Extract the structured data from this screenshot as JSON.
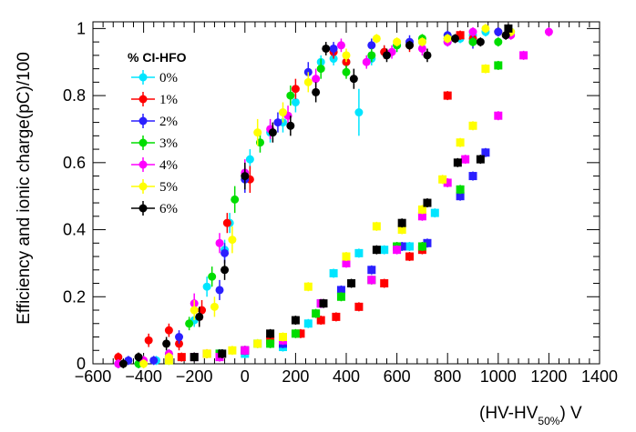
{
  "chart_data": {
    "type": "scatter",
    "xlabel": "(HV-HV",
    "xlabel_sub": "50%",
    "xlabel_unit": ") V",
    "ylabel": "Efficiency and ionic charge(pC)/100",
    "xlim": [
      -600,
      1400
    ],
    "ylim": [
      0,
      1.02
    ],
    "x_ticks": [
      -600,
      -400,
      -200,
      0,
      200,
      400,
      600,
      800,
      1000,
      1200,
      1400
    ],
    "y_ticks": [
      0,
      0.2,
      0.4,
      0.6,
      0.8,
      1
    ],
    "x_tick_labels": [
      "−600",
      "−400",
      "−200",
      "0",
      "200",
      "400",
      "600",
      "800",
      "1000",
      "1200",
      "1400"
    ],
    "y_tick_labels": [
      "0",
      "0.2",
      "0.4",
      "0.6",
      "0.8",
      "1"
    ],
    "legend_title": "% CI-HFO",
    "legend_position": "top-left",
    "series": [
      {
        "name": "0%",
        "color": "#00e5ff",
        "efficiency": [
          [
            -500,
            0.0
          ],
          [
            -420,
            0.0
          ],
          [
            -350,
            0.01
          ],
          [
            -300,
            0.03
          ],
          [
            -200,
            0.13
          ],
          [
            -150,
            0.23
          ],
          [
            -80,
            0.34
          ],
          [
            -60,
            0.42
          ],
          [
            0,
            0.55
          ],
          [
            20,
            0.61
          ],
          [
            100,
            0.69
          ],
          [
            150,
            0.72
          ],
          [
            200,
            0.78
          ],
          [
            300,
            0.9
          ],
          [
            350,
            0.91
          ],
          [
            400,
            0.9
          ],
          [
            450,
            0.75
          ],
          [
            500,
            0.91
          ],
          [
            550,
            0.93
          ],
          [
            600,
            0.95
          ],
          [
            700,
            0.96
          ],
          [
            800,
            0.96
          ],
          [
            850,
            0.97
          ],
          [
            900,
            0.98
          ],
          [
            950,
            0.99
          ],
          [
            1000,
            0.99
          ],
          [
            1050,
            0.99
          ]
        ],
        "efficiency_err": [
          0.004,
          0.004,
          0.006,
          0.01,
          0.02,
          0.03,
          0.03,
          0.03,
          0.03,
          0.03,
          0.03,
          0.03,
          0.03,
          0.02,
          0.02,
          0.02,
          0.07,
          0.02,
          0.02,
          0.02,
          0.01,
          0.01,
          0.01,
          0.01,
          0.005,
          0.005,
          0.005
        ],
        "charge": [
          [
            -300,
            0.01
          ],
          [
            -100,
            0.03
          ],
          [
            0,
            0.03
          ],
          [
            50,
            0.06
          ],
          [
            150,
            0.05
          ],
          [
            250,
            0.12
          ],
          [
            350,
            0.27
          ],
          [
            450,
            0.33
          ],
          [
            550,
            0.34
          ],
          [
            650,
            0.35
          ],
          [
            750,
            0.45
          ]
        ]
      },
      {
        "name": "1%",
        "color": "#ff0000",
        "efficiency": [
          [
            -500,
            0.02
          ],
          [
            -380,
            0.07
          ],
          [
            -300,
            0.1
          ],
          [
            -260,
            0.06
          ],
          [
            -170,
            0.16
          ],
          [
            -70,
            0.42
          ],
          [
            20,
            0.55
          ],
          [
            200,
            0.82
          ],
          [
            350,
            0.93
          ],
          [
            400,
            0.9
          ],
          [
            550,
            0.93
          ],
          [
            650,
            0.95
          ],
          [
            850,
            0.98
          ],
          [
            900,
            0.97
          ],
          [
            1000,
            0.99
          ]
        ],
        "efficiency_err": [
          0.01,
          0.02,
          0.02,
          0.02,
          0.03,
          0.03,
          0.04,
          0.03,
          0.02,
          0.02,
          0.02,
          0.02,
          0.01,
          0.01,
          0.01
        ],
        "charge": [
          [
            -250,
            0.02
          ],
          [
            -150,
            0.03
          ],
          [
            0,
            0.04
          ],
          [
            100,
            0.07
          ],
          [
            220,
            0.09
          ],
          [
            300,
            0.13
          ],
          [
            360,
            0.14
          ],
          [
            450,
            0.17
          ],
          [
            550,
            0.24
          ],
          [
            650,
            0.32
          ],
          [
            700,
            0.34
          ],
          [
            800,
            0.8
          ],
          [
            850,
            0.98
          ]
        ]
      },
      {
        "name": "2%",
        "color": "#2a1fff",
        "efficiency": [
          [
            -460,
            0.01
          ],
          [
            -360,
            0.01
          ],
          [
            -260,
            0.08
          ],
          [
            -100,
            0.22
          ],
          [
            -80,
            0.33
          ],
          [
            0,
            0.55
          ],
          [
            130,
            0.72
          ],
          [
            250,
            0.87
          ],
          [
            350,
            0.94
          ],
          [
            500,
            0.95
          ],
          [
            650,
            0.96
          ],
          [
            800,
            0.98
          ],
          [
            900,
            0.96
          ],
          [
            1000,
            0.99
          ]
        ],
        "efficiency_err": [
          0.005,
          0.01,
          0.02,
          0.03,
          0.03,
          0.04,
          0.03,
          0.03,
          0.02,
          0.02,
          0.02,
          0.01,
          0.02,
          0.01
        ],
        "charge": [
          [
            -100,
            0.03
          ],
          [
            0,
            0.04
          ],
          [
            150,
            0.06
          ],
          [
            300,
            0.18
          ],
          [
            380,
            0.22
          ],
          [
            500,
            0.28
          ],
          [
            620,
            0.35
          ],
          [
            720,
            0.36
          ],
          [
            850,
            0.5
          ],
          [
            900,
            0.56
          ],
          [
            950,
            0.63
          ]
        ]
      },
      {
        "name": "3%",
        "color": "#00dd00",
        "efficiency": [
          [
            -420,
            0.0
          ],
          [
            -300,
            0.02
          ],
          [
            -220,
            0.12
          ],
          [
            -130,
            0.26
          ],
          [
            -40,
            0.49
          ],
          [
            60,
            0.66
          ],
          [
            180,
            0.8
          ],
          [
            300,
            0.88
          ],
          [
            400,
            0.87
          ],
          [
            500,
            0.92
          ],
          [
            600,
            0.95
          ],
          [
            700,
            0.97
          ],
          [
            800,
            0.97
          ],
          [
            900,
            0.96
          ],
          [
            1000,
            0.96
          ]
        ],
        "efficiency_err": [
          0.005,
          0.01,
          0.02,
          0.03,
          0.04,
          0.03,
          0.03,
          0.03,
          0.02,
          0.02,
          0.02,
          0.01,
          0.01,
          0.01,
          0.01
        ],
        "charge": [
          [
            -200,
            0.02
          ],
          [
            -100,
            0.03
          ],
          [
            100,
            0.06
          ],
          [
            200,
            0.09
          ],
          [
            280,
            0.15
          ],
          [
            380,
            0.2
          ],
          [
            500,
            0.25
          ],
          [
            600,
            0.35
          ],
          [
            700,
            0.35
          ],
          [
            850,
            0.52
          ],
          [
            1000,
            0.89
          ]
        ]
      },
      {
        "name": "4%",
        "color": "#ff00ff",
        "efficiency": [
          [
            -500,
            0.0
          ],
          [
            -400,
            0.01
          ],
          [
            -300,
            0.03
          ],
          [
            -200,
            0.18
          ],
          [
            -100,
            0.36
          ],
          [
            0,
            0.57
          ],
          [
            100,
            0.7
          ],
          [
            170,
            0.74
          ],
          [
            280,
            0.85
          ],
          [
            380,
            0.95
          ],
          [
            480,
            0.9
          ],
          [
            580,
            0.93
          ],
          [
            700,
            0.94
          ],
          [
            800,
            0.96
          ],
          [
            900,
            0.99
          ],
          [
            1050,
            0.98
          ],
          [
            1200,
            0.99
          ]
        ],
        "efficiency_err": [
          0.005,
          0.01,
          0.01,
          0.03,
          0.03,
          0.04,
          0.03,
          0.03,
          0.03,
          0.02,
          0.02,
          0.02,
          0.02,
          0.01,
          0.005,
          0.01,
          0.005
        ],
        "charge": [
          [
            -200,
            0.02
          ],
          [
            -100,
            0.02
          ],
          [
            0,
            0.04
          ],
          [
            150,
            0.07
          ],
          [
            300,
            0.18
          ],
          [
            400,
            0.3
          ],
          [
            500,
            0.25
          ],
          [
            600,
            0.34
          ],
          [
            700,
            0.44
          ],
          [
            800,
            0.54
          ],
          [
            870,
            0.61
          ],
          [
            1000,
            0.74
          ],
          [
            1100,
            0.92
          ]
        ]
      },
      {
        "name": "5%",
        "color": "#ffff00",
        "efficiency": [
          [
            -400,
            0.0
          ],
          [
            -300,
            0.02
          ],
          [
            -200,
            0.16
          ],
          [
            -120,
            0.17
          ],
          [
            -50,
            0.37
          ],
          [
            50,
            0.69
          ],
          [
            150,
            0.75
          ],
          [
            250,
            0.84
          ],
          [
            400,
            0.92
          ],
          [
            520,
            0.97
          ],
          [
            600,
            0.96
          ],
          [
            700,
            0.96
          ],
          [
            800,
            0.97
          ],
          [
            950,
            1.0
          ],
          [
            1050,
            0.99
          ]
        ],
        "efficiency_err": [
          0.005,
          0.01,
          0.03,
          0.03,
          0.04,
          0.04,
          0.03,
          0.03,
          0.02,
          0.01,
          0.01,
          0.01,
          0.01,
          0.005,
          0.005
        ],
        "charge": [
          [
            -300,
            0.01
          ],
          [
            -150,
            0.03
          ],
          [
            -50,
            0.04
          ],
          [
            50,
            0.06
          ],
          [
            150,
            0.08
          ],
          [
            250,
            0.23
          ],
          [
            400,
            0.32
          ],
          [
            520,
            0.41
          ],
          [
            620,
            0.4
          ],
          [
            700,
            0.46
          ],
          [
            780,
            0.55
          ],
          [
            850,
            0.66
          ],
          [
            900,
            0.71
          ],
          [
            950,
            0.88
          ]
        ]
      },
      {
        "name": "6%",
        "color": "#000000",
        "efficiency": [
          [
            -480,
            0.0
          ],
          [
            -420,
            0.02
          ],
          [
            -310,
            0.06
          ],
          [
            -180,
            0.14
          ],
          [
            -80,
            0.28
          ],
          [
            0,
            0.56
          ],
          [
            110,
            0.69
          ],
          [
            180,
            0.71
          ],
          [
            280,
            0.81
          ],
          [
            320,
            0.94
          ],
          [
            430,
            0.85
          ],
          [
            560,
            0.92
          ],
          [
            650,
            0.95
          ],
          [
            720,
            0.92
          ],
          [
            830,
            0.97
          ],
          [
            930,
            0.96
          ],
          [
            1030,
            0.98
          ]
        ],
        "efficiency_err": [
          0.005,
          0.01,
          0.02,
          0.03,
          0.03,
          0.04,
          0.03,
          0.03,
          0.03,
          0.02,
          0.03,
          0.02,
          0.01,
          0.02,
          0.01,
          0.01,
          0.01
        ],
        "charge": [
          [
            -200,
            0.02
          ],
          [
            -90,
            0.03
          ],
          [
            100,
            0.09
          ],
          [
            200,
            0.13
          ],
          [
            310,
            0.18
          ],
          [
            420,
            0.24
          ],
          [
            520,
            0.34
          ],
          [
            620,
            0.42
          ],
          [
            720,
            0.48
          ],
          [
            840,
            0.6
          ],
          [
            930,
            0.61
          ],
          [
            1040,
            1.0
          ]
        ]
      }
    ]
  }
}
